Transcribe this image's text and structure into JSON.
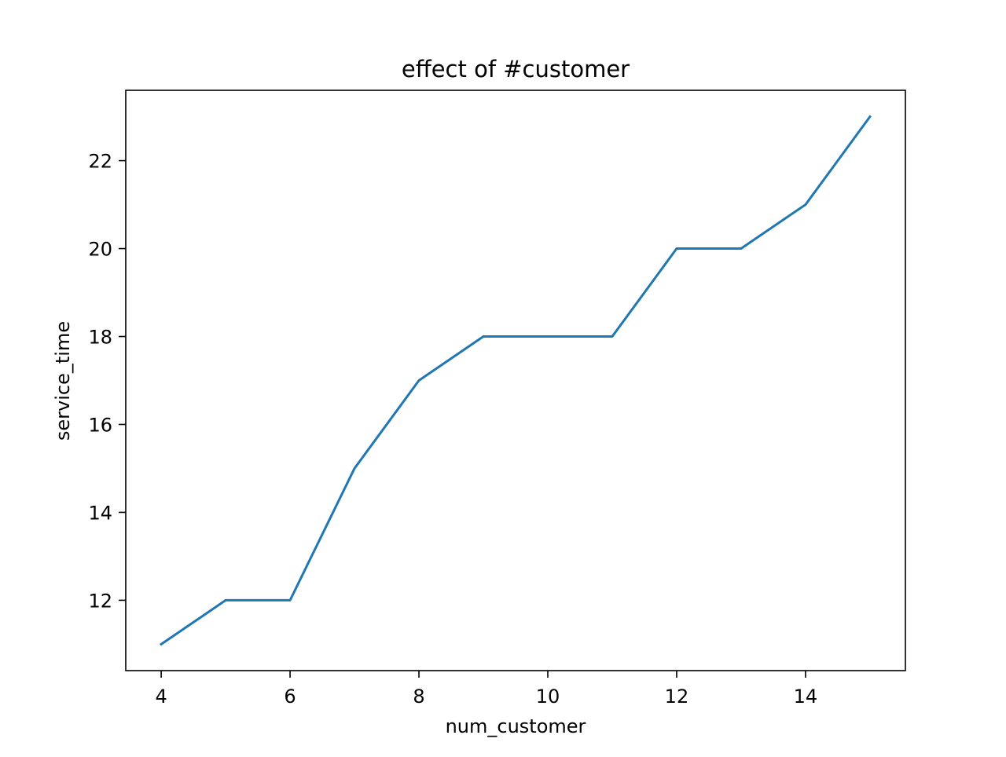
{
  "chart_data": {
    "type": "line",
    "title": "effect of #customer",
    "xlabel": "num_customer",
    "ylabel": "service_time",
    "x": [
      4,
      5,
      6,
      7,
      8,
      9,
      10,
      11,
      12,
      13,
      14,
      15
    ],
    "series": [
      {
        "values": [
          11,
          12,
          12,
          15,
          17,
          18,
          18,
          18,
          20,
          20,
          21,
          23
        ],
        "color": "#1f77b4"
      }
    ],
    "xlim": [
      3.45,
      15.55
    ],
    "ylim": [
      10.4,
      23.6
    ],
    "xticks": [
      4,
      6,
      8,
      10,
      12,
      14
    ],
    "yticks": [
      12,
      14,
      16,
      18,
      20,
      22
    ],
    "xtick_labels": [
      "4",
      "6",
      "8",
      "10",
      "12",
      "14"
    ],
    "ytick_labels": [
      "12",
      "14",
      "16",
      "18",
      "20",
      "22"
    ],
    "grid": false,
    "legend": false
  }
}
